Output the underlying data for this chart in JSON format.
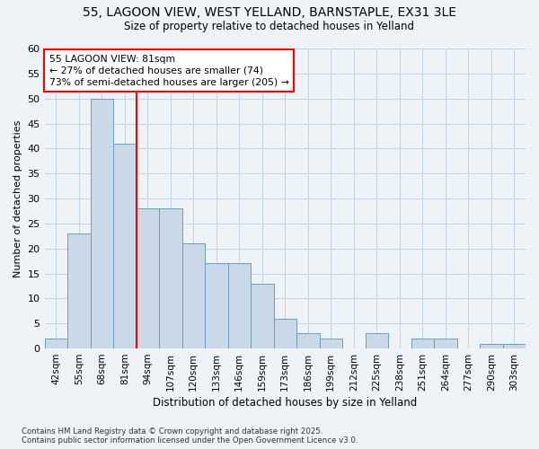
{
  "title_line1": "55, LAGOON VIEW, WEST YELLAND, BARNSTAPLE, EX31 3LE",
  "title_line2": "Size of property relative to detached houses in Yelland",
  "xlabel": "Distribution of detached houses by size in Yelland",
  "ylabel": "Number of detached properties",
  "footer": "Contains HM Land Registry data © Crown copyright and database right 2025.\nContains public sector information licensed under the Open Government Licence v3.0.",
  "bin_labels": [
    "42sqm",
    "55sqm",
    "68sqm",
    "81sqm",
    "94sqm",
    "107sqm",
    "120sqm",
    "133sqm",
    "146sqm",
    "159sqm",
    "173sqm",
    "186sqm",
    "199sqm",
    "212sqm",
    "225sqm",
    "238sqm",
    "251sqm",
    "264sqm",
    "277sqm",
    "290sqm",
    "303sqm"
  ],
  "values": [
    2,
    23,
    50,
    41,
    28,
    28,
    21,
    17,
    17,
    13,
    6,
    3,
    2,
    0,
    3,
    0,
    2,
    2,
    0,
    1,
    1
  ],
  "bar_color": "#c9d9e8",
  "bar_edge_color": "#6a9fc0",
  "grid_color": "#c0d4e8",
  "red_line_index": 3,
  "annotation_text": "55 LAGOON VIEW: 81sqm\n← 27% of detached houses are smaller (74)\n73% of semi-detached houses are larger (205) →",
  "annotation_box_color": "white",
  "annotation_box_edge_color": "red",
  "ylim": [
    0,
    60
  ],
  "yticks": [
    0,
    5,
    10,
    15,
    20,
    25,
    30,
    35,
    40,
    45,
    50,
    55,
    60
  ],
  "background_color": "#eef3f8"
}
